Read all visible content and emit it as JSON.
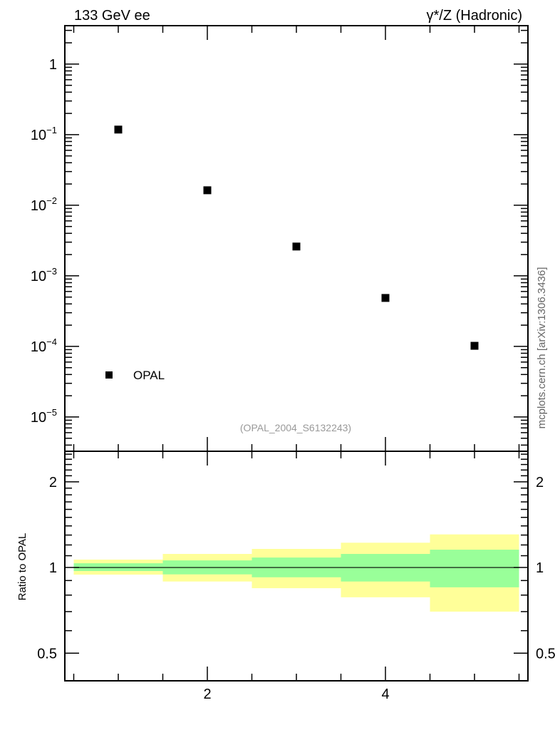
{
  "chart_data": [
    {
      "type": "scatter",
      "title_left": "133 GeV ee",
      "title_right": "γ*/Z (Hadronic)",
      "xlim": [
        0.4,
        5.6
      ],
      "ylim": [
        3.27e-06,
        3.5
      ],
      "yscale": "log",
      "y_ticks": [
        {
          "value": 1,
          "base": "1",
          "exp": ""
        },
        {
          "value": 0.1,
          "base": "10",
          "exp": "−1"
        },
        {
          "value": 0.01,
          "base": "10",
          "exp": "−2"
        },
        {
          "value": 0.001,
          "base": "10",
          "exp": "−3"
        },
        {
          "value": 0.0001,
          "base": "10",
          "exp": "−4"
        },
        {
          "value": 1e-05,
          "base": "10",
          "exp": "−5"
        }
      ],
      "series": [
        {
          "name": "OPAL",
          "x": [
            1,
            2,
            3,
            4,
            5
          ],
          "y": [
            0.118,
            0.0163,
            0.0026,
            0.000486,
            0.000102
          ]
        }
      ],
      "legend": {
        "label": "OPAL",
        "placement": "bottom-left"
      },
      "annotation": "(OPAL_2004_S6132243)",
      "side_label": "mcplots.cern.ch [arXiv:1306.3436]"
    },
    {
      "type": "area",
      "ylabel": "Ratio to OPAL",
      "xlim": [
        0.4,
        5.6
      ],
      "ylim": [
        0.4,
        2.56
      ],
      "yscale": "log",
      "x_ticks": [
        "2",
        "4"
      ],
      "x_tick_values": [
        2,
        4
      ],
      "y_ticks": [
        {
          "value": 2,
          "label": "2"
        },
        {
          "value": 1,
          "label": "1"
        },
        {
          "value": 0.5,
          "label": "0.5"
        }
      ],
      "bins": [
        [
          0.5,
          1.5
        ],
        [
          1.5,
          2.5
        ],
        [
          2.5,
          3.5
        ],
        [
          3.5,
          4.5
        ],
        [
          4.5,
          5.5
        ]
      ],
      "band_outer": {
        "color": "#ffff99",
        "low": [
          0.944,
          0.893,
          0.846,
          0.786,
          0.7
        ],
        "high": [
          1.066,
          1.116,
          1.162,
          1.222,
          1.307
        ]
      },
      "band_inner": {
        "color": "#99ff99",
        "low": [
          0.972,
          0.946,
          0.924,
          0.893,
          0.852
        ],
        "high": [
          1.035,
          1.059,
          1.084,
          1.116,
          1.155
        ]
      },
      "reference_line": 1
    }
  ]
}
